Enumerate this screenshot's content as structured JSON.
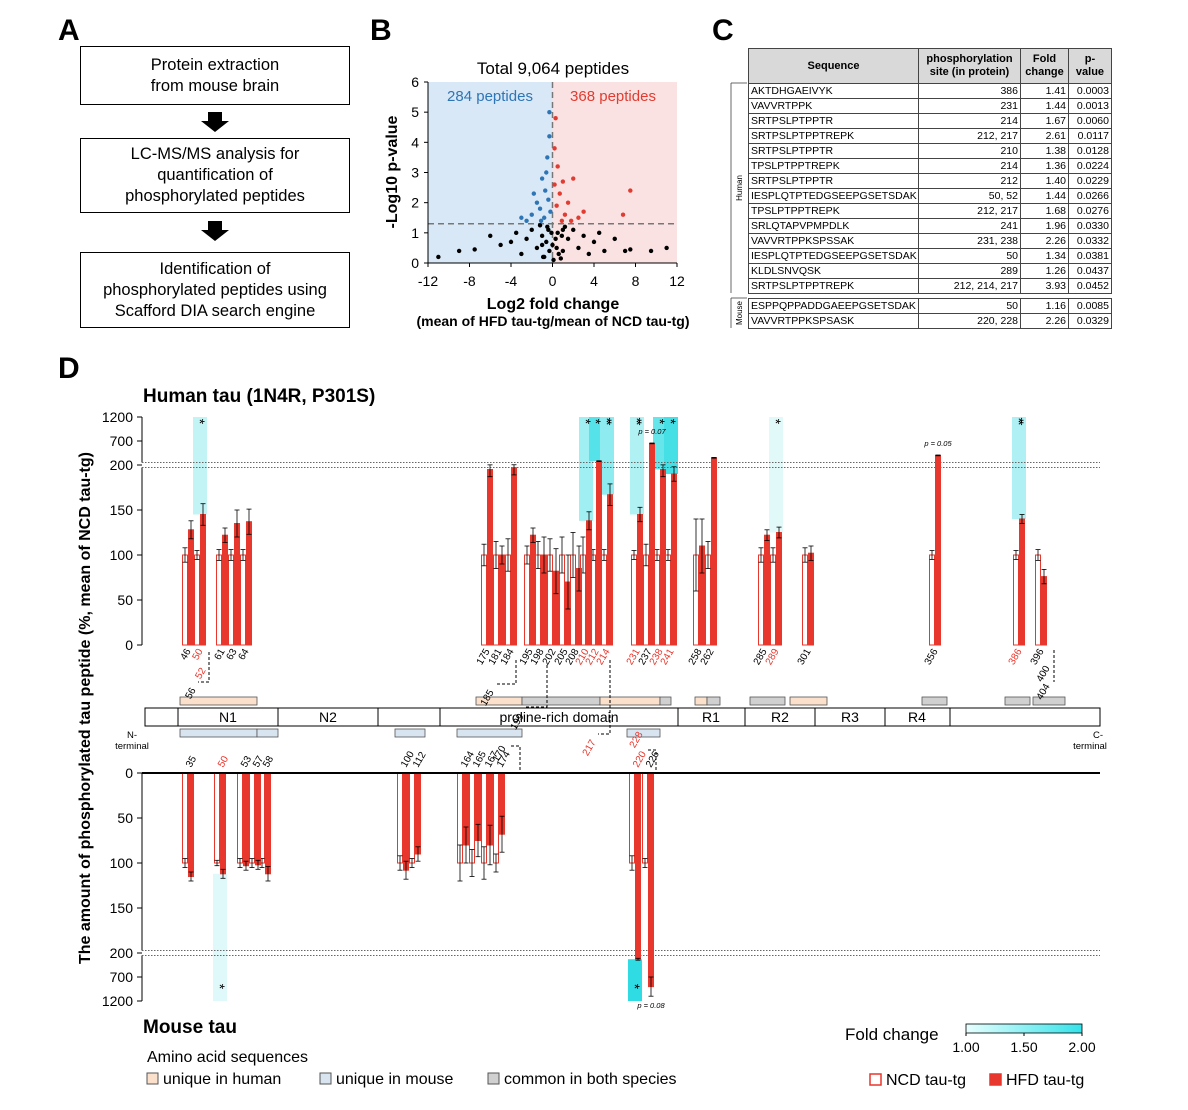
{
  "panel_labels": [
    "A",
    "B",
    "C",
    "D"
  ],
  "flowchart": {
    "steps": [
      [
        "Protein extraction",
        "from mouse brain"
      ],
      [
        "LC-MS/MS analysis for",
        "quantification of",
        "phosphorylated peptides"
      ],
      [
        "Identification of",
        "phosphorylated peptides using",
        "Scafford DIA search engine"
      ]
    ]
  },
  "table": {
    "header": [
      "Sequence",
      "phosphorylation site (in protein)",
      "Fold change",
      "p-value"
    ],
    "groups": [
      {
        "name": "Human",
        "rows": [
          [
            "AKTDHGAEIVYK",
            "386",
            "1.41",
            "0.0003"
          ],
          [
            "VAVVRTPPK",
            "231",
            "1.44",
            "0.0013"
          ],
          [
            "SRTPSLPTPPTR",
            "214",
            "1.67",
            "0.0060"
          ],
          [
            "SRTPSLPTPPTREPK",
            "212, 217",
            "2.61",
            "0.0117"
          ],
          [
            "SRTPSLPTPPTR",
            "210",
            "1.38",
            "0.0128"
          ],
          [
            "TPSLPTPPTREPK",
            "214",
            "1.36",
            "0.0224"
          ],
          [
            "SRTPSLPTPPTR",
            "212",
            "1.40",
            "0.0229"
          ],
          [
            "IESPLQTPTEDGSEEPGSETSDAK",
            "50, 52",
            "1.44",
            "0.0266"
          ],
          [
            "TPSLPTPPTREPK",
            "212, 217",
            "1.68",
            "0.0276"
          ],
          [
            "SRLQTAPVPMPDLK",
            "241",
            "1.96",
            "0.0330"
          ],
          [
            "VAVVRTPPKSPSSAK",
            "231, 238",
            "2.26",
            "0.0332"
          ],
          [
            "IESPLQTPTEDGSEEPGSETSDAK",
            "50",
            "1.34",
            "0.0381"
          ],
          [
            "KLDLSNVQSK",
            "289",
            "1.26",
            "0.0437"
          ],
          [
            "SRTPSLPTPPTREPK",
            "212, 214, 217",
            "3.93",
            "0.0452"
          ]
        ]
      },
      {
        "name": "Mouse",
        "rows": [
          [
            "ESPPQPPADDGAEEPGSETSDAK",
            "50",
            "1.16",
            "0.0085"
          ],
          [
            "VAVVRTPPKSPSASK",
            "220, 228",
            "2.26",
            "0.0329"
          ]
        ]
      }
    ]
  },
  "chart_data": [
    {
      "type": "scatter",
      "title": "Total 9,064 peptides",
      "xlabel": "Log2 fold change",
      "xlabel_sub": "(mean of HFD tau-tg/mean of NCD tau-tg)",
      "ylabel": "-Log10 p-value",
      "annotations": [
        {
          "text": "284 peptides",
          "color": "#2e75b6"
        },
        {
          "text": "368 peptides",
          "color": "#e03c31"
        }
      ],
      "shade_negative": "#d8e8f6",
      "shade_positive": "#fbe2e2",
      "hline": 1.3,
      "vline": 0,
      "xlim": [
        -12,
        12
      ],
      "xticks": [
        -12,
        -8,
        -4,
        0,
        4,
        8,
        12
      ],
      "ylim": [
        0,
        6
      ],
      "yticks": [
        0,
        1,
        2,
        3,
        4,
        5,
        6
      ],
      "series": [
        {
          "color": "#000000",
          "x": [
            -11,
            -9,
            -7.5,
            -6,
            -5,
            -4,
            -3.5,
            -3,
            -2.5,
            -2,
            -1.5,
            -1,
            -0.5,
            0,
            0.5,
            1,
            1.5,
            2,
            2.5,
            3,
            3.5,
            4,
            4.5,
            5,
            6,
            7,
            7.5,
            9.5,
            11,
            -0.8,
            0.8,
            -0.3,
            0.3,
            1.2,
            -1.2,
            -0.6,
            0.6,
            -1,
            1,
            0.1,
            -0.1,
            0.9,
            -0.9,
            0.4,
            -0.4
          ],
          "values": [
            0.2,
            0.4,
            0.45,
            0.9,
            0.6,
            0.7,
            1.0,
            0.3,
            0.8,
            1.1,
            0.5,
            0.9,
            1.2,
            0.6,
            1.0,
            0.4,
            0.8,
            1.1,
            0.5,
            0.9,
            0.3,
            0.7,
            1.0,
            0.4,
            0.8,
            0.4,
            0.45,
            0.4,
            0.5,
            0.2,
            0.15,
            0.4,
            0.8,
            1.2,
            1.25,
            0.7,
            0.3,
            0.6,
            1.1,
            0.1,
            1.0,
            0.9,
            0.2,
            0.5,
            1.1
          ]
        },
        {
          "color": "#2e75b6",
          "x": [
            -0.3,
            -0.5,
            -1,
            -0.7,
            -1.5,
            -0.4,
            -2,
            -1.2,
            -0.8,
            -2.5,
            -0.2,
            -1.8,
            -0.6,
            -3,
            -0.3,
            -1.1
          ],
          "values": [
            5.0,
            3.5,
            2.8,
            2.4,
            2.0,
            2.1,
            1.6,
            1.8,
            1.5,
            1.4,
            1.7,
            2.3,
            3.0,
            1.5,
            4.2,
            1.4
          ]
        },
        {
          "color": "#e03c31",
          "x": [
            0.3,
            0.2,
            0.5,
            1,
            0.7,
            1.5,
            2,
            7.5,
            0.4,
            1.2,
            2.5,
            0.9,
            3,
            6.8,
            0.2,
            1.8
          ],
          "values": [
            4.8,
            3.8,
            3.2,
            2.7,
            2.3,
            2.0,
            2.8,
            2.4,
            1.9,
            1.6,
            1.5,
            1.4,
            1.7,
            1.6,
            2.6,
            1.4
          ]
        }
      ]
    },
    {
      "type": "bar",
      "title": "Human tau (1N4R, P301S)",
      "categories": [
        "46",
        "50",
        "61",
        "63",
        "64",
        "175",
        "181",
        "184",
        "195",
        "198",
        "202",
        "205",
        "208",
        "210",
        "212",
        "214",
        "231",
        "237",
        "238",
        "241",
        "258",
        "262",
        "285",
        "289",
        "301",
        "356",
        "386",
        "396"
      ],
      "label_colors": [
        "#000000",
        "#e8372c",
        "#000000",
        "#000000",
        "#000000",
        "#000000",
        "#000000",
        "#000000",
        "#000000",
        "#000000",
        "#000000",
        "#000000",
        "#000000",
        "#e8372c",
        "#e8372c",
        "#e8372c",
        "#e8372c",
        "#000000",
        "#e8372c",
        "#e8372c",
        "#000000",
        "#000000",
        "#000000",
        "#e8372c",
        "#000000",
        "#000000",
        "#e8372c",
        "#000000"
      ],
      "extra_labels": [
        {
          "text": "52",
          "color": "#e8372c"
        },
        {
          "text": "56",
          "color": "#000000"
        },
        {
          "text": "185",
          "color": "#000000"
        },
        {
          "text": "199",
          "color": "#000000"
        },
        {
          "text": "217",
          "color": "#e8372c"
        },
        {
          "text": "400",
          "color": "#000000"
        },
        {
          "text": "404",
          "color": "#000000"
        }
      ],
      "series": [
        {
          "name": "NCD tau-tg",
          "color": "#e8372c",
          "fill": "#ffffff",
          "values": [
            100,
            100,
            100,
            100,
            100,
            100,
            100,
            100,
            100,
            100,
            100,
            100,
            100,
            100,
            100,
            100,
            100,
            100,
            100,
            100,
            100,
            100,
            100,
            100,
            100,
            100,
            100,
            100
          ],
          "errors": [
            8,
            5,
            6,
            6,
            6,
            12,
            15,
            18,
            10,
            15,
            18,
            20,
            25,
            20,
            6,
            6,
            5,
            12,
            6,
            6,
            40,
            15,
            8,
            8,
            8,
            5,
            5,
            6
          ]
        },
        {
          "name": "HFD tau-tg",
          "color": "#e8372c",
          "fill": "#e8372c",
          "values": [
            128,
            145,
            122,
            135,
            137,
            195,
            100,
            197,
            122,
            100,
            82,
            70,
            85,
            138,
            280,
            167,
            145,
            650,
            195,
            190,
            110,
            350,
            122,
            125,
            102,
            400,
            140,
            76
          ],
          "errors": [
            10,
            12,
            8,
            15,
            14,
            8,
            10,
            8,
            8,
            20,
            25,
            30,
            25,
            10,
            8,
            12,
            8,
            8,
            8,
            8,
            30,
            8,
            6,
            6,
            8,
            8,
            5,
            8
          ]
        }
      ],
      "ylim": [
        0,
        1200
      ],
      "ybreak": 200,
      "yticks": [
        0,
        50,
        100,
        150,
        200,
        700,
        1200
      ],
      "annotations": [
        {
          "category": "50",
          "label": "*",
          "color": "#c2f4f6"
        },
        {
          "category": "210",
          "label": "*",
          "color": "#a0eff2"
        },
        {
          "category": "212",
          "label": "*",
          "color": "#55e2e9"
        },
        {
          "category": "214",
          "label": "**",
          "color": "#8eecf0"
        },
        {
          "category": "231",
          "label": "**",
          "color": "#b0f1f4"
        },
        {
          "category": "237",
          "label": "p = 0.07"
        },
        {
          "category": "238",
          "label": "*",
          "color": "#66e5ea"
        },
        {
          "category": "241",
          "label": "*",
          "color": "#45dfe6"
        },
        {
          "category": "289",
          "label": "*",
          "color": "#e2f9fa"
        },
        {
          "category": "356",
          "label": "p = 0.05"
        },
        {
          "category": "386",
          "label": "**",
          "color": "#aef0f3"
        }
      ]
    },
    {
      "type": "bar",
      "title": "Mouse tau",
      "categories": [
        "35",
        "50",
        "53",
        "57",
        "58",
        "100",
        "112",
        "164",
        "165",
        "167",
        "174",
        "220",
        "226"
      ],
      "label_colors": [
        "#000000",
        "#e8372c",
        "#000000",
        "#000000",
        "#000000",
        "#000000",
        "#000000",
        "#000000",
        "#000000",
        "#000000",
        "#000000",
        "#e8372c",
        "#000000"
      ],
      "extra_labels": [
        {
          "text": "170",
          "color": "#000000"
        },
        {
          "text": "228",
          "color": "#e8372c"
        }
      ],
      "series": [
        {
          "name": "NCD tau-tg",
          "color": "#e8372c",
          "fill": "#ffffff",
          "values": [
            100,
            100,
            100,
            100,
            100,
            100,
            100,
            100,
            100,
            100,
            100,
            100,
            100
          ],
          "errors": [
            5,
            3,
            5,
            5,
            5,
            8,
            5,
            20,
            15,
            18,
            10,
            8,
            5
          ]
        },
        {
          "name": "HFD tau-tg",
          "color": "#e8372c",
          "fill": "#e8372c",
          "values": [
            115,
            112,
            103,
            102,
            112,
            108,
            90,
            80,
            75,
            80,
            68,
            330,
            900
          ],
          "errors": [
            5,
            5,
            5,
            5,
            8,
            10,
            8,
            20,
            18,
            22,
            20,
            20,
            200
          ]
        }
      ],
      "ylim": [
        0,
        1200
      ],
      "ybreak": 200,
      "yticks": [
        0,
        50,
        100,
        150,
        200,
        700,
        1200
      ],
      "annotations": [
        {
          "category": "50",
          "label": "*",
          "color": "#dff8fa"
        },
        {
          "category": "220",
          "label": "*",
          "color": "#2fdce4"
        },
        {
          "category": "226",
          "label": "p = 0.08"
        }
      ]
    }
  ],
  "y_label": "The amount of phosphorylated tau peptide (%, mean of NCD tau-tg)",
  "domain_map": {
    "domains": [
      "N1",
      "N2",
      "proline-rich domain",
      "R1",
      "R2",
      "R3",
      "R4"
    ],
    "n_terminal": [
      "N-",
      "terminal"
    ],
    "c_terminal": [
      "C-",
      "terminal"
    ]
  },
  "sequence_legend": {
    "title": "Amino acid sequences",
    "items": [
      {
        "label": "unique in human",
        "color": "#fbe0cc"
      },
      {
        "label": "unique in mouse",
        "color": "#d8e4f0"
      },
      {
        "label": "common in both species",
        "color": "#d0d0d0"
      }
    ]
  },
  "colorbar": {
    "title": "Fold change",
    "lim": [
      1,
      2
    ],
    "colors": [
      "#e8ffff",
      "#33e3ea"
    ],
    "ticks": [
      {
        "value": 1,
        "label": "1.00"
      },
      {
        "value": 1.5,
        "label": "1.50"
      },
      {
        "value": 2,
        "label": "2.00"
      }
    ]
  }
}
